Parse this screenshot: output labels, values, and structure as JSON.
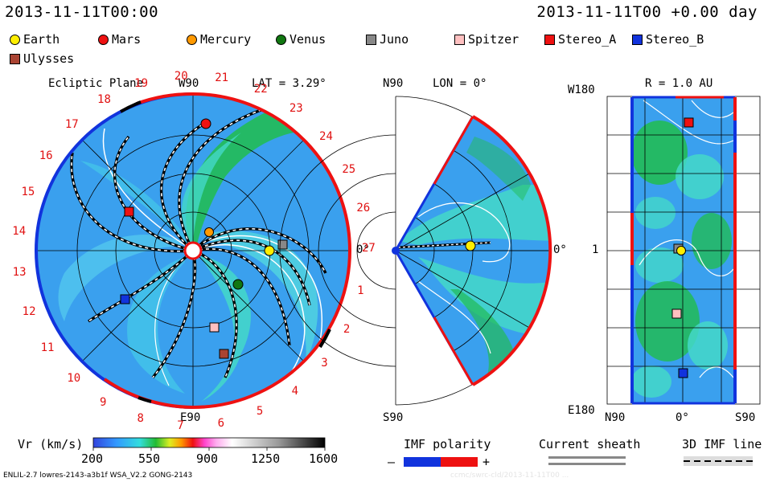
{
  "header": {
    "datetime_left": "2013-11-11T00:00",
    "datetime_right": "2013-11-11T00 +0.00 day"
  },
  "legend": {
    "items": [
      {
        "label": "Earth",
        "shape": "circle",
        "color": "#ffee00"
      },
      {
        "label": "Mars",
        "shape": "circle",
        "color": "#ee1111"
      },
      {
        "label": "Mercury",
        "shape": "circle",
        "color": "#ff9900"
      },
      {
        "label": "Venus",
        "shape": "circle",
        "color": "#117711"
      },
      {
        "label": "Juno",
        "shape": "square",
        "color": "#888888"
      },
      {
        "label": "Spitzer",
        "shape": "square",
        "color": "#ffc0c0"
      },
      {
        "label": "Stereo_A",
        "shape": "square",
        "color": "#ee1111"
      },
      {
        "label": "Stereo_B",
        "shape": "square",
        "color": "#1133dd"
      },
      {
        "label": "Ulysses",
        "shape": "square",
        "color": "#aa4433"
      }
    ]
  },
  "panels": {
    "ecliptic": {
      "title": "Ecliptic Plane",
      "lat": "LAT = 3.29°",
      "top_label": "W90",
      "bottom_label": "E90",
      "right_label": "0°",
      "sector_numbers": [
        "1",
        "2",
        "3",
        "4",
        "5",
        "6",
        "7",
        "8",
        "9",
        "10",
        "11",
        "12",
        "13",
        "14",
        "15",
        "16",
        "17",
        "18",
        "19",
        "20",
        "21",
        "22",
        "23",
        "24",
        "25",
        "26",
        "27"
      ]
    },
    "meridional": {
      "top_label": "N90",
      "lon": "LON = 0°",
      "bottom_label": "S90",
      "right_label": "0°"
    },
    "latlon": {
      "title": "R = 1.0 AU",
      "top_left": "W180",
      "left_mid": "1",
      "bottom_left": "E180",
      "x_labels": [
        "N90",
        "0°",
        "S90"
      ]
    }
  },
  "colorbar": {
    "label": "Vr (km/s)",
    "ticks": [
      "200",
      "550",
      "900",
      "1250",
      "1600"
    ]
  },
  "imf": {
    "label": "IMF polarity",
    "minus": "–",
    "plus": "+"
  },
  "current_sheath": {
    "label": "Current sheath"
  },
  "imf_line": {
    "label": "3D IMF line"
  },
  "footer": {
    "model": "ENLIL-2.7 lowres-2143-a3b1f WSA_V2.2 GONG-2143",
    "watermark": "ccmc/swrc-cld/2013-11-11T00 ..."
  },
  "colors": {
    "positive": "#ee1111",
    "negative": "#1133dd",
    "background_wind": "#3aa8e8"
  }
}
